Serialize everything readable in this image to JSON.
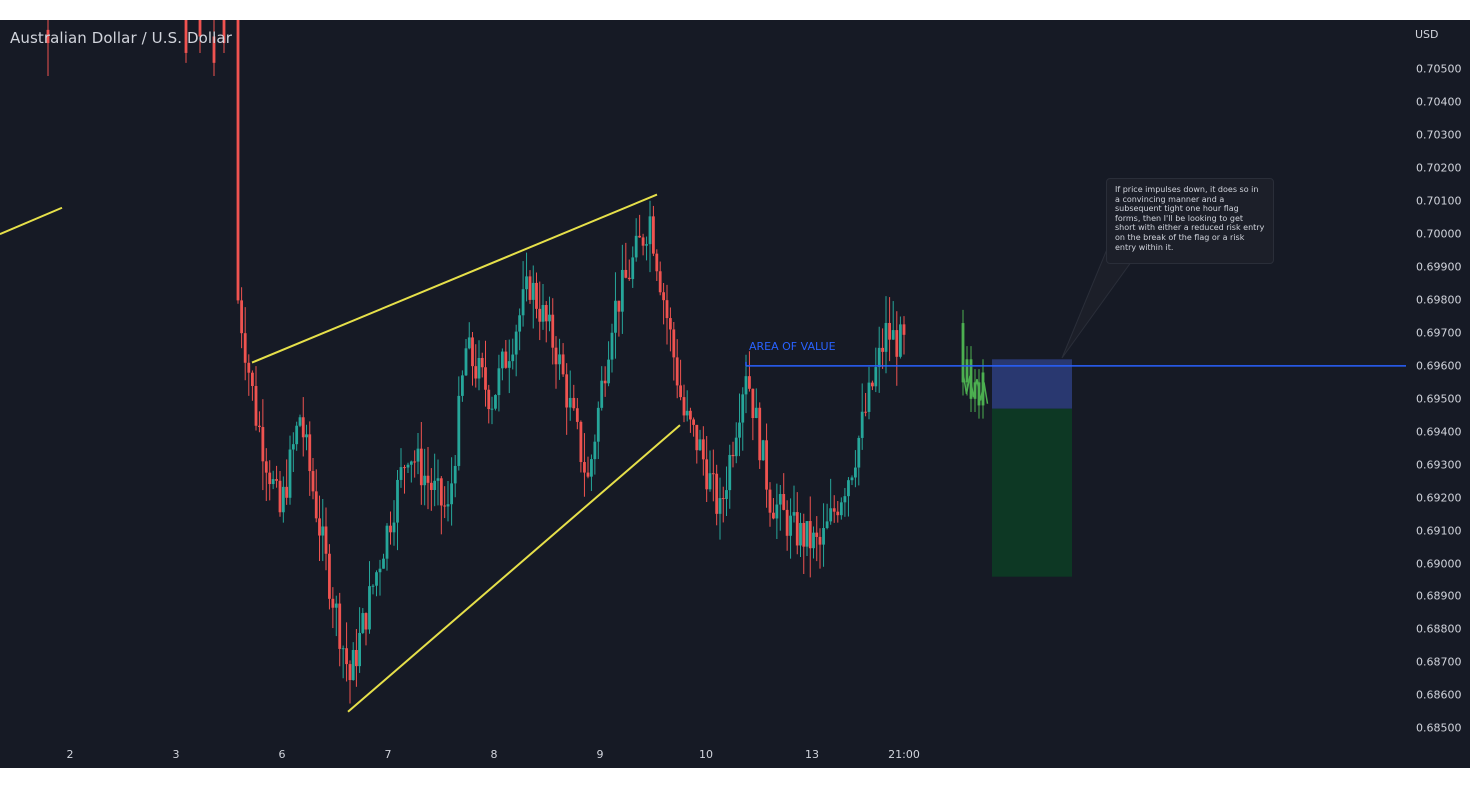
{
  "header": {
    "symbol_title": "Australian Dollar / U.S. Dollar",
    "currency": "USD"
  },
  "colors": {
    "background": "#161a25",
    "bull": "#26a69a",
    "bear": "#ef5350",
    "trendline": "#e6e04a",
    "level": "#2962ff",
    "risk_zone": "#2a3a74",
    "reward_zone": "#0d3a24",
    "projection": "#4caf50"
  },
  "annotations": {
    "area_label": "AREA OF VALUE",
    "note": "If price impulses down, it does so in a convincing manner and a subsequent tight one hour flag forms, then I'll be looking to get short with either a reduced risk entry on the break of the flag or a risk entry within it."
  },
  "chart_data": {
    "type": "candlestick",
    "title": "Australian Dollar / U.S. Dollar",
    "y_axis_label": "USD",
    "ylim": [
      0.6844,
      0.7065
    ],
    "y_ticks": [
      "0.70500",
      "0.70400",
      "0.70300",
      "0.70200",
      "0.70100",
      "0.70000",
      "0.69900",
      "0.69800",
      "0.69700",
      "0.69600",
      "0.69500",
      "0.69400",
      "0.69300",
      "0.69200",
      "0.69100",
      "0.69000",
      "0.68900",
      "0.68800",
      "0.68700",
      "0.68600",
      "0.68500"
    ],
    "x_ticks": [
      "2",
      "3",
      "6",
      "7",
      "8",
      "9",
      "10",
      "13",
      "21:00"
    ],
    "grid": false,
    "legend": "none",
    "path_points": [
      {
        "label": "3",
        "price": 0.707
      },
      {
        "label": "3",
        "price": 0.698
      },
      {
        "label": "6",
        "price": 0.6945
      },
      {
        "label": "6",
        "price": 0.6915
      },
      {
        "label": "6",
        "price": 0.6945
      },
      {
        "label": "6",
        "price": 0.69
      },
      {
        "label": "7",
        "price": 0.6865
      },
      {
        "label": "7",
        "price": 0.6885
      },
      {
        "label": "7",
        "price": 0.6935
      },
      {
        "label": "7",
        "price": 0.6915
      },
      {
        "label": "8",
        "price": 0.6965
      },
      {
        "label": "8",
        "price": 0.695
      },
      {
        "label": "8",
        "price": 0.6985
      },
      {
        "label": "8",
        "price": 0.6965
      },
      {
        "label": "9",
        "price": 0.6925
      },
      {
        "label": "9",
        "price": 0.6975
      },
      {
        "label": "9",
        "price": 0.7005
      },
      {
        "label": "10",
        "price": 0.6945
      },
      {
        "label": "10",
        "price": 0.6935
      },
      {
        "label": "10",
        "price": 0.6915
      },
      {
        "label": "10",
        "price": 0.696
      },
      {
        "label": "13",
        "price": 0.692
      },
      {
        "label": "13",
        "price": 0.691
      },
      {
        "label": "13",
        "price": 0.6905
      },
      {
        "label": "13",
        "price": 0.693
      },
      {
        "label": "21:00",
        "price": 0.697
      },
      {
        "label": "21:00",
        "price": 0.6966
      }
    ],
    "trendlines": [
      {
        "name": "upper-trendline",
        "from": 0.6961,
        "to": 0.7012
      },
      {
        "name": "lower-trendline",
        "from": 0.6855,
        "to": 0.6942
      },
      {
        "name": "prior-trendline",
        "from": 0.7,
        "to": 0.7008
      }
    ],
    "horizontal_levels": [
      {
        "name": "area-of-value",
        "price": 0.696
      }
    ],
    "position_zones": {
      "risk": [
        0.6947,
        0.6962
      ],
      "reward": [
        0.6896,
        0.6947
      ]
    },
    "projection": [
      0.6973,
      0.6955,
      0.6962,
      0.695,
      0.6955,
      0.6948,
      0.6958
    ]
  }
}
